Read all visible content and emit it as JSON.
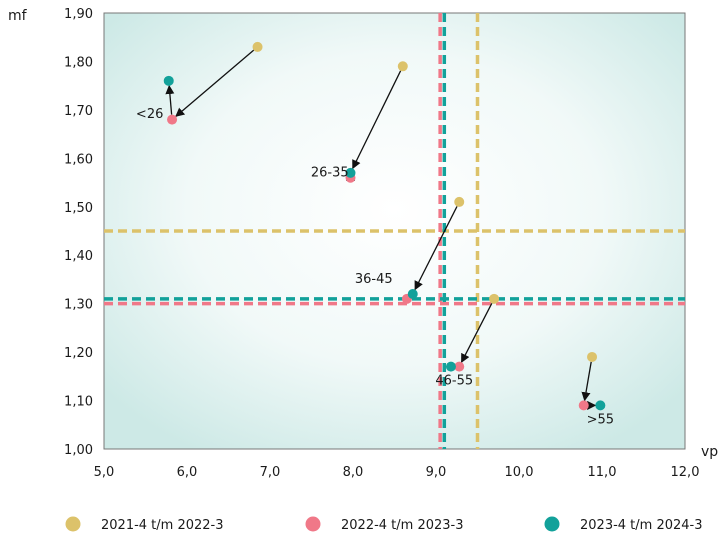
{
  "chart_data": {
    "type": "scatter",
    "title": "",
    "xlabel": "vp",
    "ylabel": "mf",
    "xlim": [
      5.0,
      12.0
    ],
    "ylim": [
      1.0,
      1.9
    ],
    "x_ticks": [
      "5,0",
      "6,0",
      "7,0",
      "8,0",
      "9,0",
      "10,0",
      "11,0",
      "12,0"
    ],
    "y_ticks": [
      "1,00",
      "1,10",
      "1,20",
      "1,30",
      "1,40",
      "1,50",
      "1,60",
      "1,70",
      "1,80",
      "1,90"
    ],
    "grid": false,
    "legend_position": "bottom",
    "groups": [
      "<26",
      "26-35",
      "36-45",
      "46-55",
      ">55"
    ],
    "series": [
      {
        "name": "2021-4 t/m 2022-3",
        "color": "#dcc26a",
        "points": [
          {
            "group": "<26",
            "x": 6.85,
            "y": 1.83
          },
          {
            "group": "26-35",
            "x": 8.6,
            "y": 1.79
          },
          {
            "group": "36-45",
            "x": 9.28,
            "y": 1.51
          },
          {
            "group": "46-55",
            "x": 9.7,
            "y": 1.31
          },
          {
            "group": ">55",
            "x": 10.88,
            "y": 1.19
          }
        ],
        "reference": {
          "x": 9.5,
          "y": 1.45
        }
      },
      {
        "name": "2022-4 t/m 2023-3",
        "color": "#f07888",
        "points": [
          {
            "group": "<26",
            "x": 5.82,
            "y": 1.68
          },
          {
            "group": "26-35",
            "x": 7.97,
            "y": 1.56
          },
          {
            "group": "36-45",
            "x": 8.65,
            "y": 1.31
          },
          {
            "group": "46-55",
            "x": 9.28,
            "y": 1.17
          },
          {
            "group": ">55",
            "x": 10.78,
            "y": 1.09
          }
        ],
        "reference": {
          "x": 9.05,
          "y": 1.3
        }
      },
      {
        "name": "2023-4 t/m 2024-3",
        "color": "#12a19a",
        "points": [
          {
            "group": "<26",
            "x": 5.78,
            "y": 1.76
          },
          {
            "group": "26-35",
            "x": 7.97,
            "y": 1.57
          },
          {
            "group": "36-45",
            "x": 8.72,
            "y": 1.32
          },
          {
            "group": "46-55",
            "x": 9.18,
            "y": 1.17
          },
          {
            "group": ">55",
            "x": 10.98,
            "y": 1.09
          }
        ],
        "reference": {
          "x": 9.1,
          "y": 1.31
        }
      }
    ],
    "arrows": [
      {
        "group": "<26",
        "path": [
          [
            6.85,
            1.83
          ],
          [
            5.82,
            1.68
          ],
          [
            5.78,
            1.76
          ]
        ]
      },
      {
        "group": "26-35",
        "path": [
          [
            8.6,
            1.79
          ],
          [
            7.97,
            1.57
          ],
          [
            7.97,
            1.56
          ]
        ]
      },
      {
        "group": "36-45",
        "path": [
          [
            9.28,
            1.51
          ],
          [
            8.72,
            1.32
          ]
        ]
      },
      {
        "group": "46-55",
        "path": [
          [
            9.7,
            1.31
          ],
          [
            9.28,
            1.17
          ]
        ]
      },
      {
        "group": ">55",
        "path": [
          [
            10.88,
            1.19
          ],
          [
            10.78,
            1.09
          ],
          [
            10.98,
            1.09
          ]
        ]
      }
    ],
    "labels": [
      {
        "text": "<26",
        "x": 5.55,
        "y": 1.69
      },
      {
        "text": "26-35",
        "x": 7.72,
        "y": 1.57
      },
      {
        "text": "36-45",
        "x": 8.25,
        "y": 1.35
      },
      {
        "text": "46-55",
        "x": 9.22,
        "y": 1.14
      },
      {
        "text": ">55",
        "x": 10.98,
        "y": 1.06
      }
    ],
    "colors": {
      "plot_edge": "#c9e8e6",
      "plot_center": "#ffffff",
      "axis": "#555555"
    }
  }
}
